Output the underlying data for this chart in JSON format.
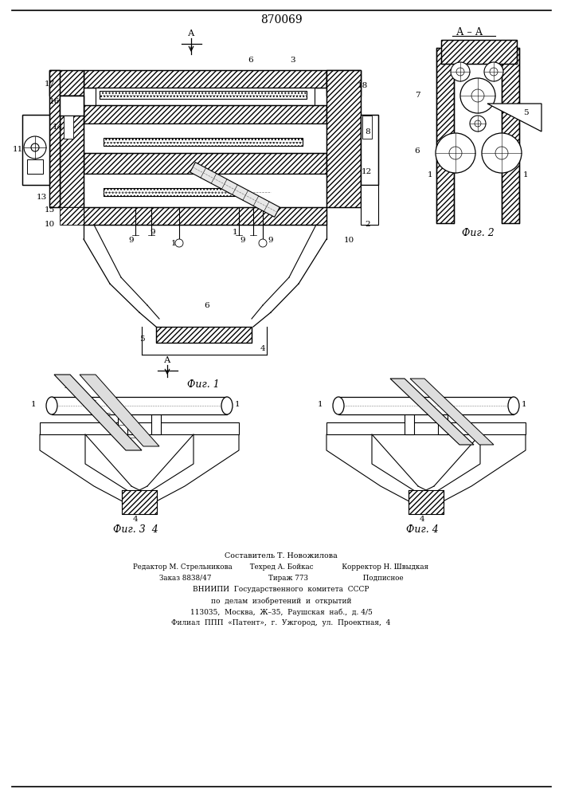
{
  "patent_number": "870069",
  "background_color": "#ffffff",
  "line_color": "#000000",
  "fig_width": 7.07,
  "fig_height": 10.0,
  "footer_lines": [
    "Составитель Т. Новожилова",
    "Редактор М. Стрельникова        Техред А. Бойкас             Корректор Н. Швыдкая",
    "Заказ 8838/47                          Тираж 773                         Подписное",
    "ВНИИПИ  Государственного  комитета  СССР",
    "по  делам  изобретений  и  открытий",
    "113035,  Москва,  Ж–35,  Раушская  наб.,  д. 4/5",
    "Филиал  ППП  «Патент»,  г.  Ужгород,  ул.  Проектная,  4"
  ],
  "fig1_caption": "Фиг. 1",
  "fig2_caption": "Фиг. 2",
  "fig3_caption": "Фиг. 3  4",
  "fig4_caption": "Фиг. 4",
  "section_label": "А – А"
}
